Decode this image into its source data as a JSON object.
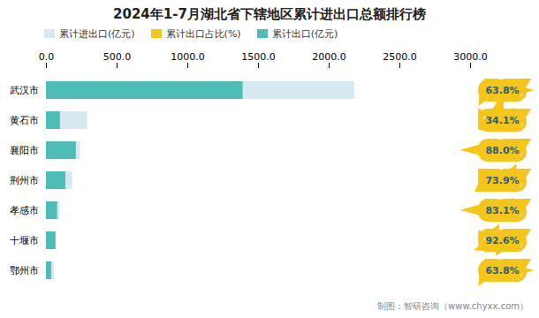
{
  "chart_data": {
    "type": "bar",
    "orientation": "horizontal",
    "stacked": false,
    "title": "2024年1-7月湖北省下辖地区累计进出口总额排行榜",
    "categories": [
      "武汉市",
      "黄石市",
      "襄阳市",
      "荆州市",
      "孝感市",
      "十堰市",
      "鄂州市"
    ],
    "series": [
      {
        "name": "累计进出口(亿元)",
        "color": "#d6e8f0",
        "values": [
          2180,
          290,
          240,
          185,
          95,
          72,
          58
        ]
      },
      {
        "name": "累计出口占比(%)",
        "type": "label",
        "color": "#f5c518",
        "values": [
          63.8,
          34.1,
          88.0,
          73.9,
          83.1,
          92.6,
          63.8
        ],
        "value_labels": [
          "63.8%",
          "34.1%",
          "88.0%",
          "73.9%",
          "83.1%",
          "92.6%",
          "63.8%"
        ]
      },
      {
        "name": "累计出口(亿元)",
        "color": "#4dbdb5",
        "values": [
          1391,
          99,
          211,
          137,
          79,
          67,
          37
        ]
      }
    ],
    "xlim": [
      0,
      3000
    ],
    "xticks": [
      {
        "value": 0,
        "label": "0.0"
      },
      {
        "value": 500,
        "label": "500.0"
      },
      {
        "value": 1000,
        "label": "1000.0"
      },
      {
        "value": 1500,
        "label": "1500.0"
      },
      {
        "value": 2000,
        "label": "2000.0"
      },
      {
        "value": 2500,
        "label": "2500.0"
      },
      {
        "value": 3000,
        "label": "3000.0"
      }
    ],
    "grid": false,
    "legend": "top",
    "caption": "制图：智研咨询（www.chyxx.com）"
  }
}
